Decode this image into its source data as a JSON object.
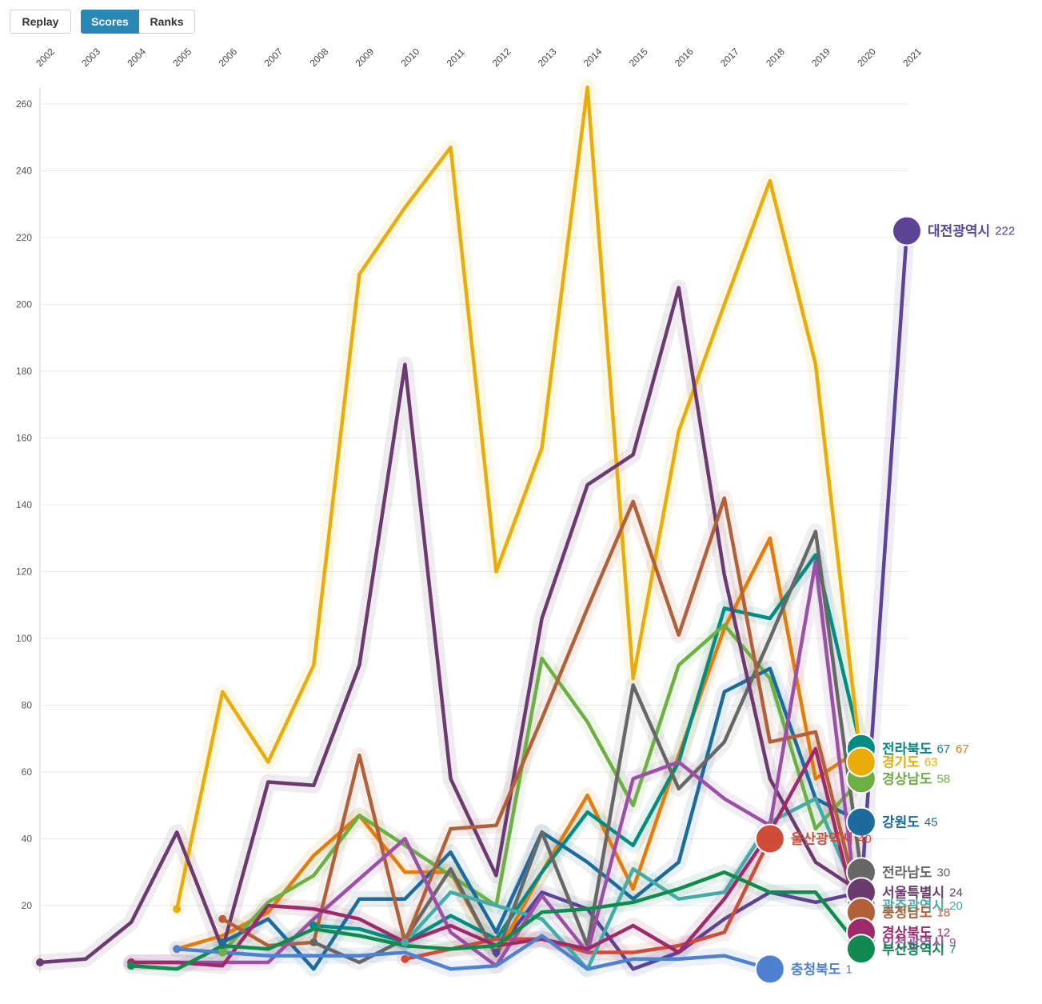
{
  "controls": [
    {
      "label": "Replay",
      "active": false
    },
    {
      "label": "Scores",
      "active": true
    },
    {
      "label": "Ranks",
      "active": false
    }
  ],
  "chart_data": {
    "type": "line",
    "x": [
      2002,
      2003,
      2004,
      2005,
      2006,
      2007,
      2008,
      2009,
      2010,
      2011,
      2012,
      2013,
      2014,
      2015,
      2016,
      2017,
      2018,
      2019,
      2020,
      2021
    ],
    "ylim": [
      0,
      265
    ],
    "yticks": [
      20,
      40,
      60,
      80,
      100,
      120,
      140,
      160,
      180,
      200,
      220,
      240,
      260
    ],
    "grid": true,
    "series": [
      {
        "name": "대전광역시",
        "color": "#5c4396",
        "values": [
          null,
          null,
          null,
          null,
          null,
          null,
          null,
          null,
          null,
          null,
          6,
          24,
          19,
          1,
          6,
          16,
          24,
          21,
          24,
          222
        ]
      },
      {
        "color": "#e27c0e",
        "values": [
          null,
          null,
          null,
          7,
          11,
          18,
          35,
          47,
          30,
          30,
          5,
          30,
          53,
          25,
          65,
          103,
          130,
          58,
          67,
          null
        ]
      },
      {
        "name": "전라북도",
        "color": "#048b82",
        "values": [
          null,
          null,
          null,
          null,
          null,
          null,
          14,
          13,
          9,
          17,
          10,
          30,
          48,
          38,
          63,
          109,
          106,
          125,
          67,
          null
        ]
      },
      {
        "name": "경상남도",
        "color": "#6eaf45",
        "values": [
          null,
          null,
          null,
          null,
          6,
          21,
          29,
          47,
          38,
          29,
          20,
          94,
          75,
          50,
          92,
          104,
          88,
          43,
          58,
          null
        ]
      },
      {
        "name": "경기도",
        "color": "#e9ac0b",
        "values": [
          null,
          null,
          null,
          19,
          84,
          63,
          92,
          209,
          229,
          247,
          120,
          157,
          265,
          88,
          162,
          200,
          237,
          182,
          63,
          null
        ]
      },
      {
        "name": "강원도",
        "color": "#1c6b9c",
        "values": [
          null,
          null,
          null,
          null,
          9,
          16,
          1,
          22,
          22,
          36,
          12,
          42,
          33,
          22,
          33,
          84,
          91,
          52,
          45,
          null
        ]
      },
      {
        "name": "울산광역시",
        "color": "#d14b39",
        "values": [
          null,
          null,
          null,
          null,
          null,
          null,
          null,
          null,
          4,
          7,
          10,
          10,
          6,
          6,
          8,
          12,
          40,
          null,
          null,
          null
        ]
      },
      {
        "name": "전라남도",
        "color": "#676767",
        "values": [
          null,
          null,
          null,
          null,
          null,
          null,
          9,
          3,
          10,
          31,
          5,
          42,
          8,
          86,
          55,
          69,
          100,
          132,
          30,
          null
        ]
      },
      {
        "name": "광주광역시",
        "color": "#46aaa7",
        "values": [
          null,
          null,
          null,
          null,
          null,
          null,
          null,
          null,
          9,
          24,
          20,
          16,
          1,
          31,
          22,
          24,
          45,
          52,
          20,
          null
        ]
      },
      {
        "name": "서울특별시",
        "color": "#6b3a6f",
        "values": [
          3,
          4,
          15,
          42,
          7,
          57,
          56,
          92,
          182,
          58,
          29,
          106,
          146,
          155,
          205,
          119,
          58,
          33,
          24,
          null
        ]
      },
      {
        "name": "충청남도",
        "color": "#b2603a",
        "values": [
          null,
          null,
          null,
          null,
          16,
          8,
          9,
          65,
          9,
          43,
          44,
          76,
          109,
          141,
          101,
          142,
          69,
          72,
          18,
          null
        ]
      },
      {
        "name": "인천광역시",
        "color": "#9b4fa6",
        "values": [
          null,
          null,
          3,
          3,
          3,
          3,
          16,
          28,
          40,
          12,
          2,
          23,
          6,
          58,
          63,
          52,
          44,
          123,
          9,
          null
        ]
      },
      {
        "name": "경상북도",
        "color": "#9f2a6a",
        "values": [
          null,
          null,
          3,
          3,
          2,
          20,
          19,
          16,
          9,
          14,
          8,
          10,
          7,
          14,
          6,
          22,
          42,
          67,
          12,
          null
        ]
      },
      {
        "name": "부산광역시",
        "color": "#108a4e",
        "values": [
          null,
          null,
          2,
          1,
          8,
          7,
          13,
          11,
          8,
          7,
          8,
          18,
          19,
          21,
          25,
          30,
          24,
          24,
          7,
          null
        ]
      },
      {
        "name": "충청북도",
        "color": "#5080d0",
        "values": [
          null,
          null,
          null,
          7,
          6,
          5,
          5,
          5,
          6,
          1,
          2,
          11,
          1,
          4,
          4,
          5,
          1,
          null,
          null,
          null
        ]
      }
    ]
  }
}
